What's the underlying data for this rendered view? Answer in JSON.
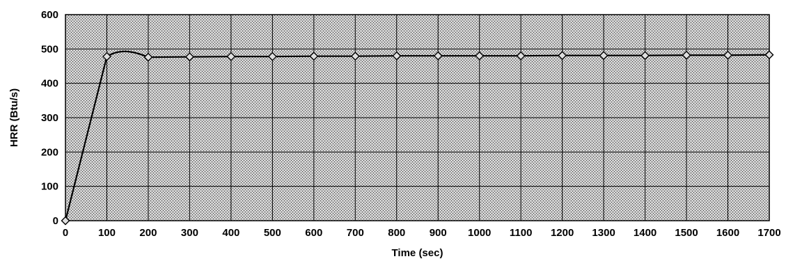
{
  "chart_data": {
    "type": "line",
    "title": "",
    "xlabel": "Time (sec)",
    "ylabel": "HRR (Btu/s)",
    "xlim": [
      0,
      1700
    ],
    "ylim": [
      0,
      600
    ],
    "x_ticks": [
      0,
      100,
      200,
      300,
      400,
      500,
      600,
      700,
      800,
      900,
      1000,
      1100,
      1200,
      1300,
      1400,
      1500,
      1600,
      1700
    ],
    "y_ticks": [
      0,
      100,
      200,
      300,
      400,
      500,
      600
    ],
    "grid": true,
    "legend": "none",
    "plot_background": "stippled grey",
    "series": [
      {
        "x": [
          0,
          100,
          200,
          300,
          400,
          500,
          600,
          700,
          800,
          900,
          1000,
          1100,
          1200,
          1300,
          1400,
          1500,
          1600,
          1700
        ],
        "y": [
          0,
          478,
          476,
          477,
          478,
          478,
          479,
          479,
          480,
          480,
          480,
          480,
          481,
          481,
          481,
          482,
          482,
          483
        ],
        "color": "#000000",
        "marker": "diamond"
      }
    ],
    "peak_curve": {
      "x": [
        100,
        130,
        160,
        200
      ],
      "y": [
        478,
        500,
        496,
        476
      ]
    }
  }
}
